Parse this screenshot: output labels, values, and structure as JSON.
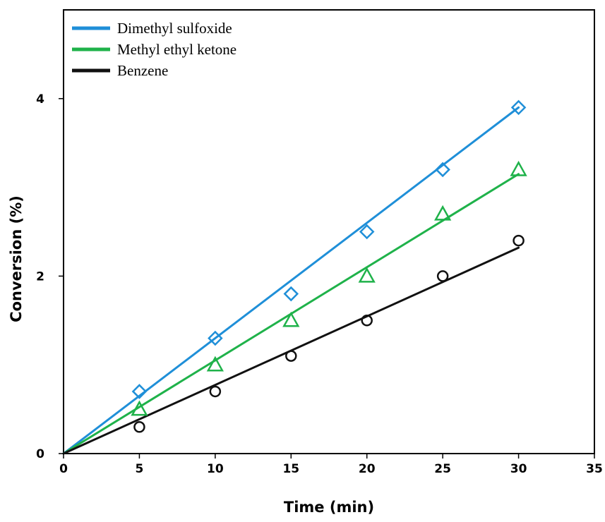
{
  "chart_data": {
    "type": "scatter",
    "title": "",
    "xlabel": "Time (min)",
    "ylabel": "Conversion (%)",
    "xlim": [
      0,
      35
    ],
    "ylim": [
      0,
      4
    ],
    "ymax_frame": 5,
    "x_ticks": [
      "0",
      "5",
      "10",
      "15",
      "20",
      "25",
      "30",
      "35"
    ],
    "y_ticks": [
      "0",
      "2",
      "4"
    ],
    "grid": false,
    "legend_position": "top-left",
    "series": [
      {
        "name": "Dimethyl sulfoxide",
        "color": "#1f8fd8",
        "marker": "diamond",
        "x": [
          5,
          10,
          15,
          20,
          25,
          30
        ],
        "y": [
          0.7,
          1.3,
          1.8,
          2.5,
          3.2,
          3.9
        ],
        "fit_end": [
          30,
          3.9
        ]
      },
      {
        "name": "Methyl ethyl ketone",
        "color": "#1fb24a",
        "marker": "triangle",
        "x": [
          5,
          10,
          15,
          20,
          25,
          30
        ],
        "y": [
          0.5,
          1.0,
          1.5,
          2.0,
          2.7,
          3.2
        ],
        "fit_end": [
          30,
          3.15
        ]
      },
      {
        "name": "Benzene",
        "color": "#111111",
        "marker": "circle",
        "x": [
          5,
          10,
          15,
          20,
          25,
          30
        ],
        "y": [
          0.3,
          0.7,
          1.1,
          1.5,
          2.0,
          2.4
        ],
        "fit_end": [
          30,
          2.32
        ]
      }
    ]
  }
}
